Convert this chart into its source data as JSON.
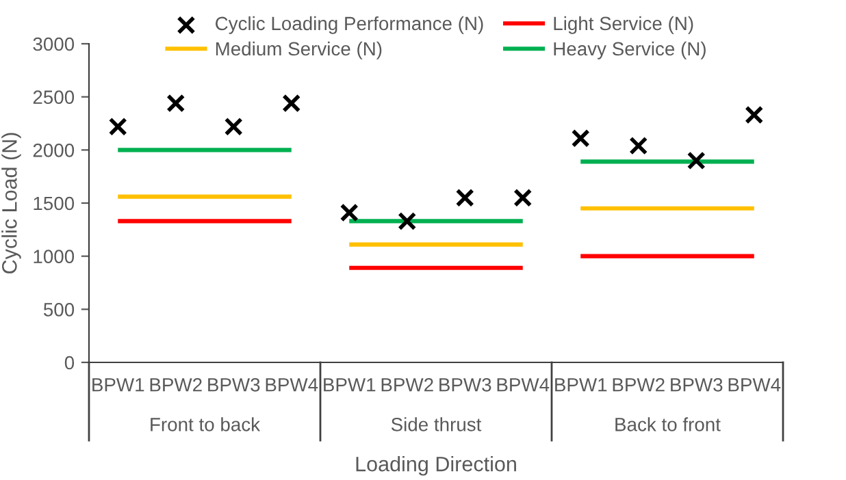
{
  "chart_data": {
    "type": "line",
    "xlabel": "Loading Direction",
    "ylabel": "Cyclic Load (N)",
    "categories": [
      "BPW1",
      "BPW2",
      "BPW3",
      "BPW4",
      "BPW1",
      "BPW2",
      "BPW3",
      "BPW4",
      "BPW1",
      "BPW2",
      "BPW3",
      "BPW4"
    ],
    "annotations": [
      "Front to back",
      "Side thrust",
      "Back to front"
    ],
    "series": [
      {
        "name": "Cyclic Loading Performance (N)",
        "type": "scatter",
        "marker": "cross",
        "color": "#000000",
        "values": [
          2220,
          2440,
          2220,
          2440,
          1410,
          1330,
          1550,
          1550,
          2110,
          2040,
          1900,
          2330
        ]
      },
      {
        "name": "Light Service (N)",
        "color": "#ff0000",
        "values": [
          1330,
          1330,
          1330,
          1330,
          890,
          890,
          890,
          890,
          1000,
          1000,
          1000,
          1000
        ]
      },
      {
        "name": "Medium Service (N)",
        "color": "#ffc000",
        "values": [
          1560,
          1560,
          1560,
          1560,
          1110,
          1110,
          1110,
          1110,
          1450,
          1450,
          1450,
          1450
        ]
      },
      {
        "name": "Heavy Service (N)",
        "color": "#00b050",
        "values": [
          2000,
          2000,
          2000,
          2000,
          1330,
          1330,
          1330,
          1330,
          1890,
          1890,
          1890,
          1890
        ]
      }
    ],
    "ylim": [
      0,
      3000
    ],
    "yticks": [
      0,
      500,
      1000,
      1500,
      2000,
      2500,
      3000
    ],
    "marker": "none",
    "line_style": "solid",
    "grid": false,
    "legend": "top"
  }
}
